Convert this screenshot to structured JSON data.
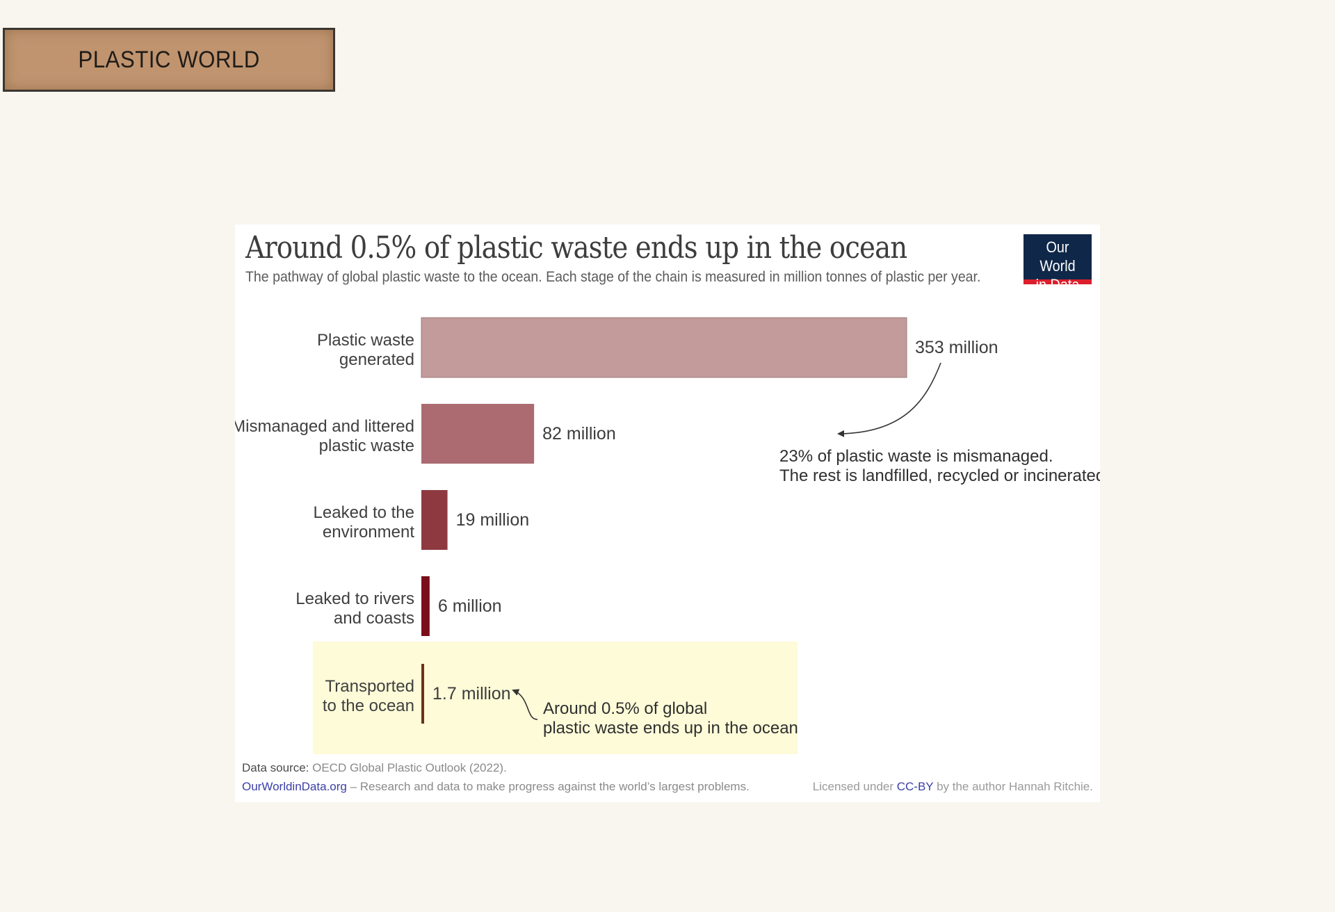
{
  "banner": {
    "text": "PLASTIC WORLD"
  },
  "logo": {
    "line1": "Our World",
    "line2": "in Data"
  },
  "chart_data": {
    "type": "bar",
    "title": "Around 0.5% of plastic waste ends up in the ocean",
    "subtitle": "The pathway of global plastic waste to the ocean. Each stage of the chain is measured in million tonnes of plastic per year.",
    "categories": [
      [
        "Plastic waste",
        "generated"
      ],
      [
        "Mismanaged and littered",
        "plastic waste"
      ],
      [
        "Leaked to the",
        "environment"
      ],
      [
        "Leaked to rivers",
        "and coasts"
      ],
      [
        "Transported",
        "to the ocean"
      ]
    ],
    "values": [
      353,
      82,
      19,
      6,
      1.7
    ],
    "value_labels": [
      "353 million",
      "82 million",
      "19 million",
      "6 million",
      "1.7 million"
    ],
    "colors": [
      "#c49b9b",
      "#ab6b70",
      "#8e3940",
      "#7a0f1b",
      "#6e3317"
    ],
    "highlight_color": "#fdfbd8",
    "annotations": [
      {
        "lines": [
          "23% of plastic waste is mismanaged.",
          "The rest is landfilled, recycled or incinerated."
        ]
      },
      {
        "lines": [
          "Around 0.5% of global",
          "plastic waste ends up in the ocean"
        ]
      }
    ]
  },
  "footer": {
    "source_label": "Data source:",
    "source_text": "OECD Global Plastic Outlook (2022).",
    "site": "OurWorldinData.org",
    "site_tagline": " – Research and data to make progress against the world’s largest problems.",
    "license_prefix": "Licensed under ",
    "license_link": "CC-BY",
    "license_suffix": " by the author Hannah Ritchie."
  }
}
